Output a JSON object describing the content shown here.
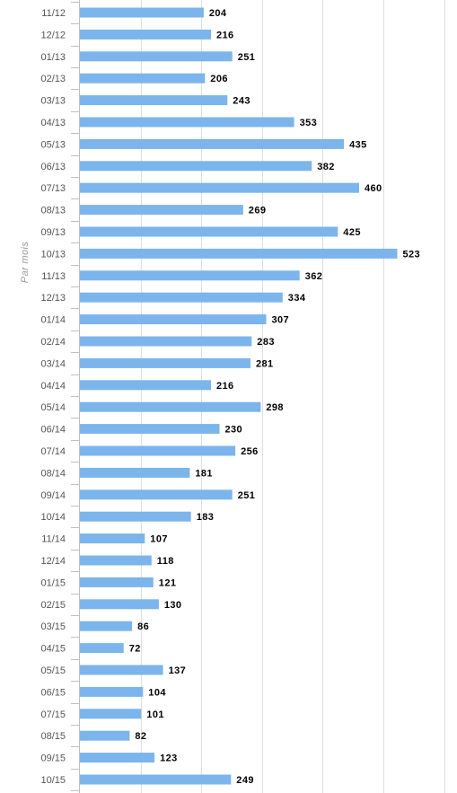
{
  "chart_data": {
    "type": "bar",
    "orientation": "horizontal",
    "title": "",
    "xlabel": "",
    "ylabel": "Par mois",
    "categories": [
      "11/12",
      "12/12",
      "01/13",
      "02/13",
      "03/13",
      "04/13",
      "05/13",
      "06/13",
      "07/13",
      "08/13",
      "09/13",
      "10/13",
      "11/13",
      "12/13",
      "01/14",
      "02/14",
      "03/14",
      "04/14",
      "05/14",
      "06/14",
      "07/14",
      "08/14",
      "09/14",
      "10/14",
      "11/14",
      "12/14",
      "01/15",
      "02/15",
      "03/15",
      "04/15",
      "05/15",
      "06/15",
      "07/15",
      "08/15",
      "09/15",
      "10/15"
    ],
    "values": [
      204,
      216,
      251,
      206,
      243,
      353,
      435,
      382,
      460,
      269,
      425,
      523,
      362,
      334,
      307,
      283,
      281,
      216,
      298,
      230,
      256,
      181,
      251,
      183,
      107,
      118,
      121,
      130,
      86,
      72,
      137,
      104,
      101,
      82,
      123,
      249
    ],
    "xlim": [
      0,
      600
    ],
    "grid": true,
    "legend": "none",
    "bar_color": "#7cb5ec"
  }
}
